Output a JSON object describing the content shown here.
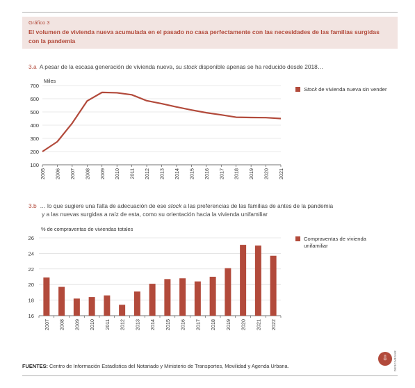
{
  "figure": {
    "label": "Gráfico 3",
    "title": "El volumen de vivienda nueva acumulada en el pasado no casa perfectamente con las necesidades de las familias surgidas con la pandemia"
  },
  "panel_a": {
    "number": "3.a",
    "subtitle_before": "A pesar de la escasa generación de vivienda nueva, su ",
    "subtitle_italic": "stock",
    "subtitle_after": " disponible apenas se ha reducido desde 2018…",
    "legend_italic": "Stock",
    "legend_rest": " de vivienda nueva sin vender"
  },
  "panel_b": {
    "number": "3.b",
    "subtitle_line1_before": "… lo que sugiere una falta de adecuación de ese ",
    "subtitle_line1_italic": "stock",
    "subtitle_line1_after": " a las preferencias de las familias de antes de la pandemia",
    "subtitle_line2": "y a las nuevas surgidas a raíz de esta, como su orientación hacia la vivienda unifamiliar",
    "legend": "Compraventas de vivienda unifamiliar"
  },
  "source": {
    "label": "FUENTES:",
    "text": " Centro de Información Estadística del Notariado y Ministerio de Transportes, Movilidad y Agenda Urbana."
  },
  "download": {
    "icon": "download-icon",
    "label": "DESCARGAR"
  },
  "colors": {
    "accent": "#b24a3b",
    "header_bg": "#f2e4e1"
  },
  "chart_data": [
    {
      "type": "line",
      "title": "",
      "ylabel": "Miles",
      "xlabel": "",
      "ylim": [
        100,
        700
      ],
      "yticks": [
        100,
        200,
        300,
        400,
        500,
        600,
        700
      ],
      "grid": true,
      "legend_position": "right",
      "x": [
        "2005",
        "2006",
        "2007",
        "2008",
        "2009",
        "2010",
        "2011",
        "2012",
        "2013",
        "2014",
        "2015",
        "2016",
        "2017",
        "2018",
        "2019",
        "2020",
        "2021"
      ],
      "series": [
        {
          "name": "Stock de vivienda nueva sin vender",
          "values": [
            200,
            275,
            415,
            583,
            648,
            645,
            630,
            585,
            563,
            538,
            515,
            494,
            478,
            460,
            458,
            457,
            450
          ]
        }
      ]
    },
    {
      "type": "bar",
      "title": "",
      "ylabel": "% de compraventas de viviendas totales",
      "xlabel": "",
      "ylim": [
        16,
        26
      ],
      "yticks": [
        16,
        18,
        20,
        22,
        24,
        26
      ],
      "grid": true,
      "legend_position": "right",
      "categories": [
        "2007",
        "2008",
        "2009",
        "2010",
        "2011",
        "2012",
        "2013",
        "2014",
        "2015",
        "2016",
        "2017",
        "2018",
        "2019",
        "2020",
        "2021",
        "2022"
      ],
      "series": [
        {
          "name": "Compraventas de vivienda unifamiliar",
          "values": [
            20.9,
            19.7,
            18.2,
            18.4,
            18.6,
            17.4,
            19.1,
            20.1,
            20.7,
            20.8,
            20.4,
            21.0,
            22.1,
            25.1,
            25.0,
            23.7
          ]
        }
      ]
    }
  ]
}
